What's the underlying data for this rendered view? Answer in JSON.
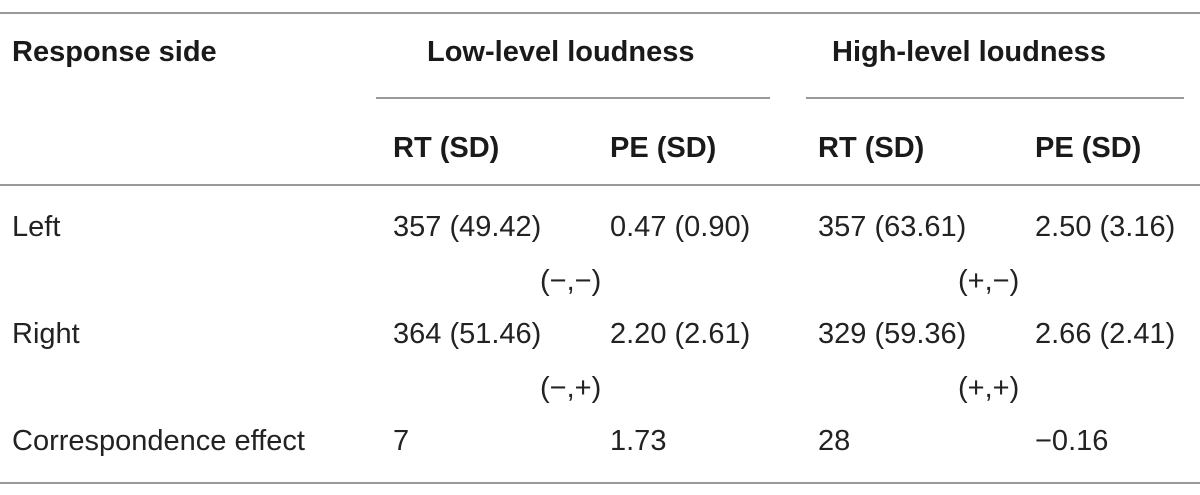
{
  "table": {
    "header": {
      "response_side": "Response side",
      "low_level": "Low-level loudness",
      "high_level": "High-level loudness",
      "low_rt": "RT (SD)",
      "low_pe": "PE (SD)",
      "high_rt": "RT (SD)",
      "high_pe": "PE (SD)"
    },
    "rows": [
      {
        "label": "Left",
        "low_rt": "357 (49.42)",
        "low_pe": "0.47 (0.90)",
        "high_rt": "357 (63.61)",
        "high_pe": "2.50 (3.16)",
        "low_sign": "(−,−)",
        "high_sign": "(+,−)"
      },
      {
        "label": "Right",
        "low_rt": "364 (51.46)",
        "low_pe": "2.20 (2.61)",
        "high_rt": "329 (59.36)",
        "high_pe": "2.66 (2.41)",
        "low_sign": "(−,+)",
        "high_sign": "(+,+)"
      },
      {
        "label": "Correspondence effect",
        "low_rt": "7",
        "low_pe": "1.73",
        "high_rt": "28",
        "high_pe": "−0.16"
      }
    ]
  }
}
